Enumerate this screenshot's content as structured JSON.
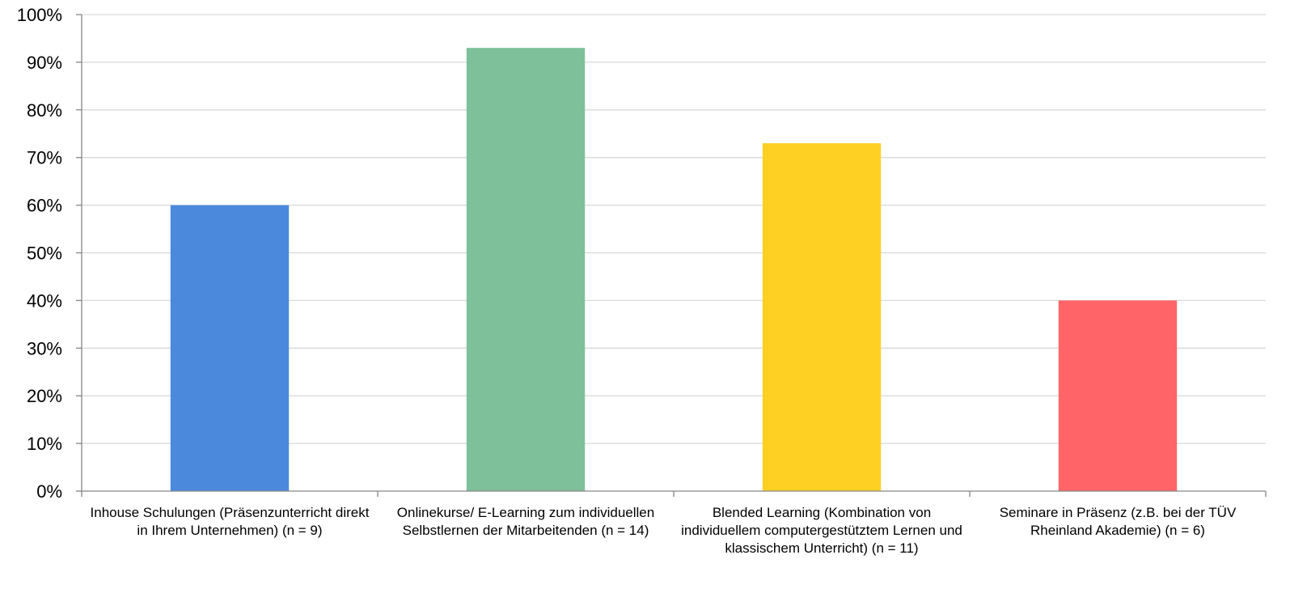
{
  "chart_data": {
    "type": "bar",
    "title": "",
    "xlabel": "",
    "ylabel": "",
    "ylim": [
      0,
      100
    ],
    "y_unit": "%",
    "y_ticks": [
      "0%",
      "10%",
      "20%",
      "30%",
      "40%",
      "50%",
      "60%",
      "70%",
      "80%",
      "90%",
      "100%"
    ],
    "grid": true,
    "categories": [
      "Inhouse Schulungen (Präsenzunterricht direkt in Ihrem Unternehmen) (n = 9)",
      "Onlinekurse/ E-Learning zum individuellen Selbstlernen der Mitarbeitenden (n = 14)",
      "Blended Learning (Kombination von individuellem computergestütztem Lernen und klassischem Unterricht) (n = 11)",
      "Seminare in Präsenz (z.B. bei der TÜV Rheinland Akademie) (n = 6)"
    ],
    "values": [
      60,
      93,
      73,
      40
    ],
    "colors": [
      "#4a89dc",
      "#7dc09a",
      "#fdd023",
      "#ff6468"
    ],
    "grid_color": "#d9d9d9",
    "axis_color": "#868686"
  }
}
